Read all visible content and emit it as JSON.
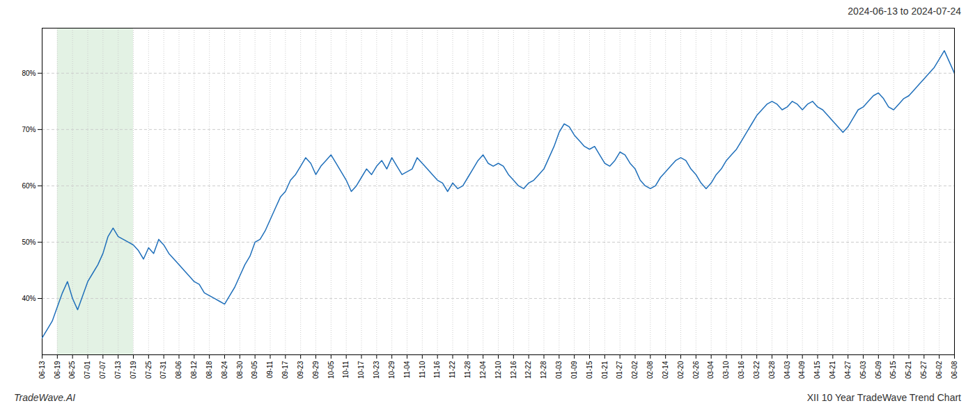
{
  "chart_data": {
    "type": "line",
    "title": "2024-06-13 to 2024-07-24",
    "annotations": [
      "TradeWave.AI",
      "XII 10 Year TradeWave Trend Chart"
    ],
    "color": "#1f6fba",
    "grid": true,
    "ylim": [
      30,
      88
    ],
    "yticks": [
      {
        "value": 40,
        "label": "40%"
      },
      {
        "value": 50,
        "label": "50%"
      },
      {
        "value": 60,
        "label": "60%"
      },
      {
        "value": 70,
        "label": "70%"
      },
      {
        "value": 80,
        "label": "80%"
      }
    ],
    "shaded_range": {
      "from": "06-19",
      "to": "07-19",
      "color": "#c8e6c9"
    },
    "categories": [
      "06-13",
      null,
      null,
      "06-19",
      null,
      null,
      "06-25",
      null,
      null,
      "07-01",
      null,
      null,
      "07-07",
      null,
      null,
      "07-13",
      null,
      null,
      "07-19",
      null,
      null,
      "07-25",
      null,
      null,
      "07-31",
      null,
      null,
      "08-06",
      null,
      null,
      "08-12",
      null,
      null,
      "08-18",
      null,
      null,
      "08-24",
      null,
      null,
      "08-30",
      null,
      null,
      "09-05",
      null,
      null,
      "09-11",
      null,
      null,
      "09-17",
      null,
      null,
      "09-23",
      null,
      null,
      "09-29",
      null,
      null,
      "10-05",
      null,
      null,
      "10-11",
      null,
      null,
      "10-17",
      null,
      null,
      "10-23",
      null,
      null,
      "10-29",
      null,
      null,
      "11-04",
      null,
      null,
      "11-10",
      null,
      null,
      "11-16",
      null,
      null,
      "11-22",
      null,
      null,
      "11-28",
      null,
      null,
      "12-04",
      null,
      null,
      "12-10",
      null,
      null,
      "12-16",
      null,
      null,
      "12-22",
      null,
      null,
      "12-28",
      null,
      null,
      "01-03",
      null,
      null,
      "01-09",
      null,
      null,
      "01-15",
      null,
      null,
      "01-21",
      null,
      null,
      "01-27",
      null,
      null,
      "02-02",
      null,
      null,
      "02-08",
      null,
      null,
      "02-14",
      null,
      null,
      "02-20",
      null,
      null,
      "02-26",
      null,
      null,
      "03-04",
      null,
      null,
      "03-10",
      null,
      null,
      "03-16",
      null,
      null,
      "03-22",
      null,
      null,
      "03-28",
      null,
      null,
      "04-03",
      null,
      null,
      "04-09",
      null,
      null,
      "04-15",
      null,
      null,
      "04-21",
      null,
      null,
      "04-27",
      null,
      null,
      "05-03",
      null,
      null,
      "05-09",
      null,
      null,
      "05-15",
      null,
      null,
      "05-21",
      null,
      null,
      "05-27",
      null,
      null,
      "06-02",
      null,
      null,
      "06-08"
    ],
    "values": [
      33.0,
      34.5,
      36.0,
      38.5,
      41.0,
      43.0,
      40.0,
      38.0,
      40.5,
      43.0,
      44.5,
      46.0,
      48.0,
      51.0,
      52.5,
      51.0,
      50.5,
      50.0,
      49.5,
      48.5,
      47.0,
      49.0,
      48.0,
      50.5,
      49.5,
      48.0,
      47.0,
      46.0,
      45.0,
      44.0,
      43.0,
      42.5,
      41.0,
      40.5,
      40.0,
      39.5,
      39.0,
      40.5,
      42.0,
      44.0,
      46.0,
      47.5,
      50.0,
      50.5,
      52.0,
      54.0,
      56.0,
      58.0,
      59.0,
      61.0,
      62.0,
      63.5,
      65.0,
      64.0,
      62.0,
      63.5,
      64.5,
      65.5,
      64.0,
      62.5,
      61.0,
      59.0,
      60.0,
      61.5,
      63.0,
      62.0,
      63.5,
      64.5,
      63.0,
      65.0,
      63.5,
      62.0,
      62.5,
      63.0,
      65.0,
      64.0,
      63.0,
      62.0,
      61.0,
      60.5,
      59.0,
      60.5,
      59.5,
      60.0,
      61.5,
      63.0,
      64.5,
      65.5,
      64.0,
      63.5,
      64.0,
      63.5,
      62.0,
      61.0,
      60.0,
      59.5,
      60.5,
      61.0,
      62.0,
      63.0,
      65.0,
      67.0,
      69.5,
      71.0,
      70.5,
      69.0,
      68.0,
      67.0,
      66.5,
      67.0,
      65.5,
      64.0,
      63.5,
      64.5,
      66.0,
      65.5,
      64.0,
      63.0,
      61.0,
      60.0,
      59.5,
      60.0,
      61.5,
      62.5,
      63.5,
      64.5,
      65.0,
      64.5,
      63.0,
      62.0,
      60.5,
      59.5,
      60.5,
      62.0,
      63.0,
      64.5,
      65.5,
      66.5,
      68.0,
      69.5,
      71.0,
      72.5,
      73.5,
      74.5,
      75.0,
      74.5,
      73.5,
      74.0,
      75.0,
      74.5,
      73.5,
      74.5,
      75.0,
      74.0,
      73.5,
      72.5,
      71.5,
      70.5,
      69.5,
      70.5,
      72.0,
      73.5,
      74.0,
      75.0,
      76.0,
      76.5,
      75.5,
      74.0,
      73.5,
      74.5,
      75.5,
      76.0,
      77.0,
      78.0,
      79.0,
      80.0,
      81.0,
      82.5,
      84.0,
      82.0,
      80.0
    ]
  }
}
